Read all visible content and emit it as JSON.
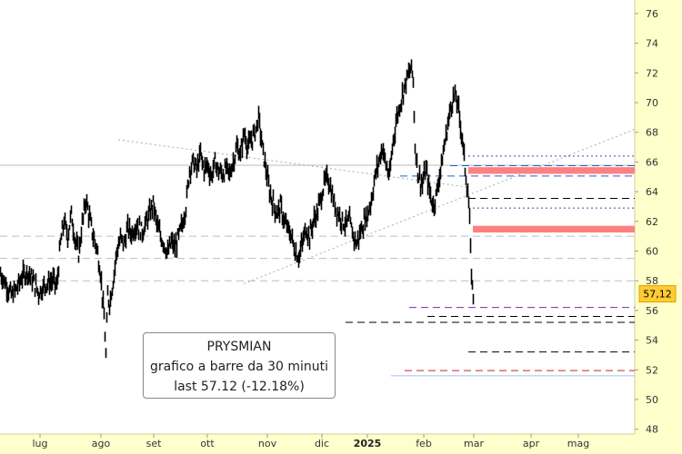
{
  "chart_data": {
    "type": "ohlc",
    "title": "PRYSMIAN",
    "subtitle": "grafico a barre da 30 minuti",
    "last_text": "last 57.12 (-12.18%)",
    "last_value_label": "57,12",
    "last_value": 57.12,
    "ylim": [
      47.5,
      77.2
    ],
    "y_ticks": [
      48,
      50,
      52,
      54,
      56,
      58,
      60,
      62,
      64,
      66,
      68,
      70,
      72,
      74,
      76
    ],
    "x_ticks": [
      {
        "label": "lug",
        "bold": false
      },
      {
        "label": "ago",
        "bold": false
      },
      {
        "label": "set",
        "bold": false
      },
      {
        "label": "ott",
        "bold": false
      },
      {
        "label": "nov",
        "bold": false
      },
      {
        "label": "dic",
        "bold": false
      },
      {
        "label": "2025",
        "bold": true
      },
      {
        "label": "feb",
        "bold": false
      },
      {
        "label": "mar",
        "bold": false
      },
      {
        "label": "apr",
        "bold": false
      },
      {
        "label": "mag",
        "bold": false
      }
    ],
    "price_path": [
      [
        0,
        58.5
      ],
      [
        6,
        57.8
      ],
      [
        12,
        57.0
      ],
      [
        18,
        57.5
      ],
      [
        24,
        58.3
      ],
      [
        30,
        58.6
      ],
      [
        36,
        58.0
      ],
      [
        42,
        57.2
      ],
      [
        50,
        57.8
      ],
      [
        58,
        58.0
      ],
      [
        62,
        57.6
      ],
      [
        66,
        60.5
      ],
      [
        70,
        62.0
      ],
      [
        74,
        61.0
      ],
      [
        78,
        62.5
      ],
      [
        82,
        60.8
      ],
      [
        86,
        59.8
      ],
      [
        90,
        61.8
      ],
      [
        94,
        63.5
      ],
      [
        98,
        62.2
      ],
      [
        102,
        61.0
      ],
      [
        106,
        60.2
      ],
      [
        110,
        58.6
      ],
      [
        114,
        55.5
      ],
      [
        116,
        53.0
      ],
      [
        118,
        57.0
      ],
      [
        120,
        56.5
      ],
      [
        124,
        58.0
      ],
      [
        128,
        60.0
      ],
      [
        132,
        60.8
      ],
      [
        136,
        60.5
      ],
      [
        140,
        61.5
      ],
      [
        144,
        61.2
      ],
      [
        150,
        61.8
      ],
      [
        156,
        61.3
      ],
      [
        160,
        61.9
      ],
      [
        164,
        62.5
      ],
      [
        168,
        63.2
      ],
      [
        172,
        61.8
      ],
      [
        176,
        61.0
      ],
      [
        180,
        60.5
      ],
      [
        184,
        59.8
      ],
      [
        188,
        60.6
      ],
      [
        192,
        60.2
      ],
      [
        196,
        61.0
      ],
      [
        200,
        61.8
      ],
      [
        204,
        63.0
      ],
      [
        208,
        65.5
      ],
      [
        212,
        66.0
      ],
      [
        216,
        65.5
      ],
      [
        220,
        66.5
      ],
      [
        224,
        65.5
      ],
      [
        228,
        65.8
      ],
      [
        232,
        65.0
      ],
      [
        236,
        66.0
      ],
      [
        240,
        65.4
      ],
      [
        244,
        65.2
      ],
      [
        248,
        65.5
      ],
      [
        252,
        65.2
      ],
      [
        256,
        66.0
      ],
      [
        260,
        67.0
      ],
      [
        264,
        66.5
      ],
      [
        268,
        68.0
      ],
      [
        272,
        67.0
      ],
      [
        276,
        67.5
      ],
      [
        280,
        68.0
      ],
      [
        284,
        69.0
      ],
      [
        288,
        67.0
      ],
      [
        292,
        65.5
      ],
      [
        296,
        64.0
      ],
      [
        300,
        63.2
      ],
      [
        304,
        62.5
      ],
      [
        308,
        63.0
      ],
      [
        312,
        62.0
      ],
      [
        316,
        61.5
      ],
      [
        320,
        61.0
      ],
      [
        324,
        60.0
      ],
      [
        328,
        59.6
      ],
      [
        332,
        60.5
      ],
      [
        336,
        61.5
      ],
      [
        340,
        61.0
      ],
      [
        344,
        62.0
      ],
      [
        348,
        62.5
      ],
      [
        352,
        63.5
      ],
      [
        356,
        64.5
      ],
      [
        360,
        65.0
      ],
      [
        364,
        64.0
      ],
      [
        368,
        63.0
      ],
      [
        372,
        62.5
      ],
      [
        376,
        62.0
      ],
      [
        380,
        61.8
      ],
      [
        384,
        62.0
      ],
      [
        388,
        61.0
      ],
      [
        392,
        60.5
      ],
      [
        396,
        61.3
      ],
      [
        400,
        62.0
      ],
      [
        404,
        62.5
      ],
      [
        408,
        63.5
      ],
      [
        412,
        65.0
      ],
      [
        416,
        66.0
      ],
      [
        420,
        67.0
      ],
      [
        424,
        65.8
      ],
      [
        428,
        65.0
      ],
      [
        432,
        67.5
      ],
      [
        436,
        69.0
      ],
      [
        440,
        70.0
      ],
      [
        444,
        71.0
      ],
      [
        448,
        71.8
      ],
      [
        452,
        72.3
      ],
      [
        454,
        71.5
      ],
      [
        456,
        67.0
      ],
      [
        460,
        65.0
      ],
      [
        464,
        64.5
      ],
      [
        468,
        65.5
      ],
      [
        472,
        64.0
      ],
      [
        476,
        63.0
      ],
      [
        480,
        64.0
      ],
      [
        484,
        65.5
      ],
      [
        488,
        67.0
      ],
      [
        492,
        68.5
      ],
      [
        496,
        70.0
      ],
      [
        500,
        70.5
      ],
      [
        504,
        69.5
      ],
      [
        508,
        67.5
      ],
      [
        512,
        65.0
      ],
      [
        514,
        64.0
      ],
      [
        516,
        62.0
      ],
      [
        517,
        60.0
      ],
      [
        518,
        58.5
      ],
      [
        519,
        57.5
      ],
      [
        520,
        57.1
      ]
    ],
    "support_lines": [
      {
        "kind": "solid",
        "color": "#bbbbbb",
        "value": 65.78,
        "from_x": 0
      },
      {
        "kind": "dashed",
        "color": "#bdbdbd",
        "value": 61.0,
        "from_x": 0
      },
      {
        "kind": "dashed",
        "color": "#bdbdbd",
        "value": 59.5,
        "from_x": 0
      },
      {
        "kind": "dashed",
        "color": "#bdbdbd",
        "value": 58.0,
        "from_x": 0
      },
      {
        "kind": "dashed",
        "color": "#1f5fd1",
        "value": 65.75,
        "from_x": 495
      },
      {
        "kind": "dashed",
        "color": "#1f5fd1",
        "value": 65.05,
        "from_x": 440
      },
      {
        "kind": "dashed",
        "color": "#000000",
        "value": 63.55,
        "from_x": 515
      },
      {
        "kind": "dotted",
        "color": "#7a2aa8",
        "value": 66.4,
        "from_x": 515
      },
      {
        "kind": "dotted",
        "color": "#7a2aa8",
        "value": 62.9,
        "from_x": 515
      },
      {
        "kind": "dashed",
        "color": "#7a2aa8",
        "value": 56.2,
        "from_x": 450
      },
      {
        "kind": "dashed",
        "color": "#000000",
        "value": 55.6,
        "from_x": 470
      },
      {
        "kind": "dashed",
        "color": "#000000",
        "value": 55.2,
        "from_x": 380
      },
      {
        "kind": "dashed",
        "color": "#000000",
        "value": 53.2,
        "from_x": 515
      },
      {
        "kind": "dashed",
        "color": "#cc2222",
        "value": 51.95,
        "from_x": 445
      },
      {
        "kind": "solid",
        "color": "#9ec3ef",
        "value": 51.6,
        "from_x": 430
      }
    ],
    "resistance_bands": [
      {
        "color": "#ff8080",
        "low": 65.2,
        "high": 65.65,
        "from_x": 515
      },
      {
        "color": "#ff8080",
        "low": 61.25,
        "high": 61.7,
        "from_x": 520
      }
    ],
    "trend_lines": [
      {
        "color": "#aaaaaa",
        "from": [
          130,
          67.5
        ],
        "to": [
          515,
          64.3
        ]
      },
      {
        "color": "#aaaaaa",
        "from": [
          268,
          57.8
        ],
        "to": [
          698,
          68.2
        ]
      }
    ]
  }
}
